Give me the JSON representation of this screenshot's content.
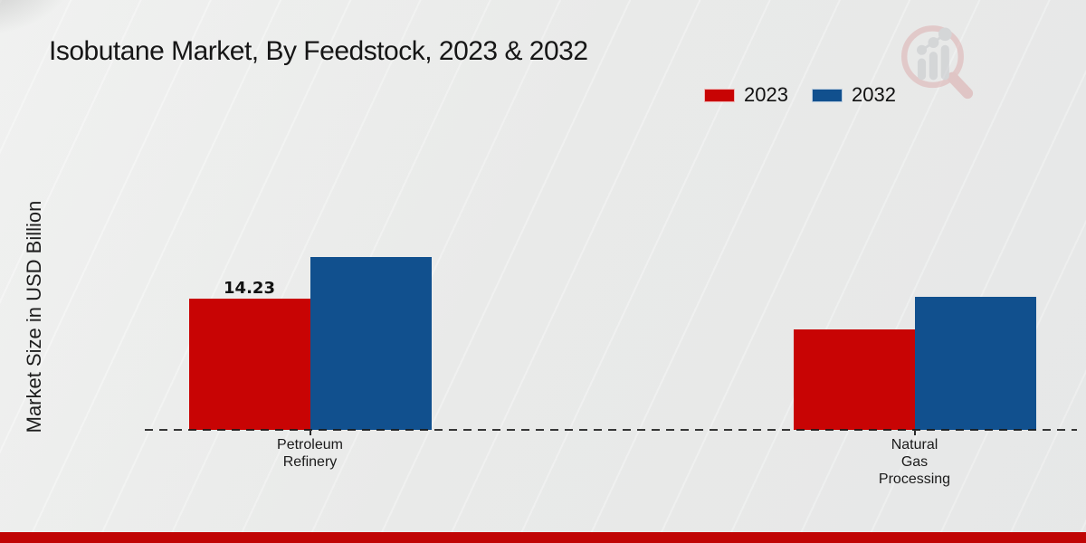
{
  "page": {
    "title": "Isobutane Market, By Feedstock, 2023 & 2032"
  },
  "watermark": {
    "name": "magnifier-bar-chart-logo"
  },
  "footer": {
    "accent_color": "#c00505"
  },
  "chart_data": {
    "type": "bar",
    "title": "Isobutane Market, By Feedstock, 2023 & 2032",
    "xlabel": "",
    "ylabel": "Market Size in USD Billion",
    "categories": [
      "Petroleum Refinery",
      "Natural Gas Processing"
    ],
    "categories_lines": [
      [
        "Petroleum",
        "Refinery"
      ],
      [
        "Natural",
        "Gas",
        "Processing"
      ]
    ],
    "series": [
      {
        "name": "2023",
        "color": "#c80404",
        "values": [
          14.23,
          10.9
        ],
        "data_labels": [
          "14.23",
          null
        ]
      },
      {
        "name": "2032",
        "color": "#11508e",
        "values": [
          18.79,
          14.43
        ],
        "data_labels": [
          null,
          null
        ]
      }
    ],
    "ylim": [
      0,
      20
    ],
    "grid": false,
    "y_axis_ticks_visible": false,
    "baseline_style": "dashed",
    "legend_position": "top-right"
  }
}
